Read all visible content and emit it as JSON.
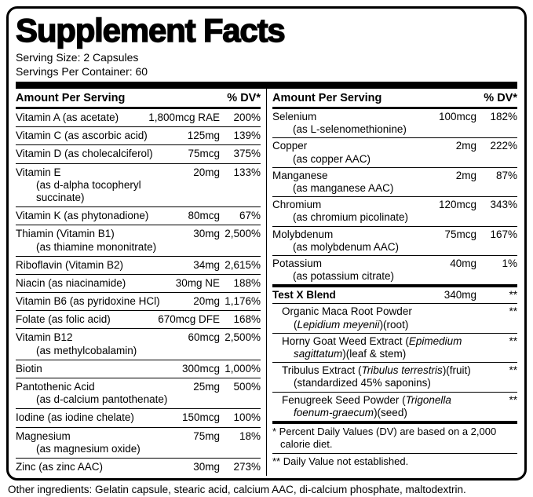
{
  "title": "Supplement Facts",
  "serving": {
    "size": "Serving Size: 2 Capsules",
    "per_container": "Servings Per Container: 60"
  },
  "headers": {
    "amount": "Amount Per Serving",
    "dv": "% DV*"
  },
  "left_rows": [
    {
      "name": "Vitamin A (as acetate)",
      "amount": "1,800mcg RAE",
      "dv": "200%"
    },
    {
      "name": "Vitamin C (as ascorbic acid)",
      "amount": "125mg",
      "dv": "139%"
    },
    {
      "name": "Vitamin D (as cholecalciferol)",
      "amount": "75mcg",
      "dv": "375%"
    },
    {
      "name": "Vitamin E",
      "sub": "(as d-alpha tocopheryl succinate)",
      "amount": "20mg",
      "dv": "133%"
    },
    {
      "name": "Vitamin K (as phytonadione)",
      "amount": "80mcg",
      "dv": "67%"
    },
    {
      "name": "Thiamin (Vitamin B1)",
      "sub": "(as thiamine mononitrate)",
      "amount": "30mg",
      "dv": "2,500%"
    },
    {
      "name": "Riboflavin (Vitamin B2)",
      "amount": "34mg",
      "dv": "2,615%"
    },
    {
      "name": "Niacin (as niacinamide)",
      "amount": "30mg NE",
      "dv": "188%"
    },
    {
      "name": "Vitamin B6 (as pyridoxine HCl)",
      "amount": "20mg",
      "dv": "1,176%"
    },
    {
      "name": "Folate (as folic acid)",
      "amount": "670mcg DFE",
      "dv": "168%"
    },
    {
      "name": "Vitamin B12",
      "sub": "(as methylcobalamin)",
      "amount": "60mcg",
      "dv": "2,500%"
    },
    {
      "name": "Biotin",
      "amount": "300mcg",
      "dv": "1,000%"
    },
    {
      "name": "Pantothenic Acid",
      "sub": "(as d-calcium pantothenate)",
      "amount": "25mg",
      "dv": "500%"
    },
    {
      "name": "Iodine (as iodine chelate)",
      "amount": "150mcg",
      "dv": "100%"
    },
    {
      "name": "Magnesium",
      "sub": "(as magnesium oxide)",
      "amount": "75mg",
      "dv": "18%"
    },
    {
      "name": "Zinc (as zinc AAC)",
      "amount": "30mg",
      "dv": "273%"
    }
  ],
  "right_rows": [
    {
      "name": "Selenium",
      "sub": "(as L-selenomethionine)",
      "amount": "100mcg",
      "dv": "182%"
    },
    {
      "name": "Copper",
      "sub": "(as copper AAC)",
      "amount": "2mg",
      "dv": "222%"
    },
    {
      "name": "Manganese",
      "sub": "(as manganese AAC)",
      "amount": "2mg",
      "dv": "87%"
    },
    {
      "name": "Chromium",
      "sub": "(as chromium picolinate)",
      "amount": "120mcg",
      "dv": "343%"
    },
    {
      "name": "Molybdenum",
      "sub": "(as molybdenum AAC)",
      "amount": "75mcg",
      "dv": "167%"
    },
    {
      "name": "Potassium",
      "sub": "(as potassium citrate)",
      "amount": "40mg",
      "dv": "1%"
    }
  ],
  "blend": {
    "name": "Test X Blend",
    "amount": "340mg",
    "dv": "**",
    "items": [
      {
        "l1_pre": "Organic Maca Root Powder",
        "l2_pre": "(",
        "l2_it": "Lepidium meyenii",
        "l2_post": ")(root)",
        "dv": "**"
      },
      {
        "l1_pre": "Horny Goat Weed Extract (",
        "l1_it": "Epimedium",
        "l2_it": "sagittatum",
        "l2_post": ")(leaf & stem)",
        "dv": "**"
      },
      {
        "l1_pre": "Tribulus Extract (",
        "l1_it": "Tribulus terrestris",
        "l1_post": ")(fruit)",
        "l2_pre": "(standardized 45% saponins)",
        "dv": "**"
      },
      {
        "l1_pre": "Fenugreek Seed Powder (",
        "l1_it": "Trigonella",
        "l2_it": "foenum-graecum",
        "l2_post": ")(seed)",
        "dv": "**"
      }
    ]
  },
  "footnotes": {
    "daily_values": "* Percent Daily Values (DV) are based on a 2,000 calorie diet.",
    "not_established": "** Daily Value not established."
  },
  "other_ingredients": "Other ingredients: Gelatin capsule, stearic acid, calcium AAC, di-calcium phosphate, maltodextrin."
}
